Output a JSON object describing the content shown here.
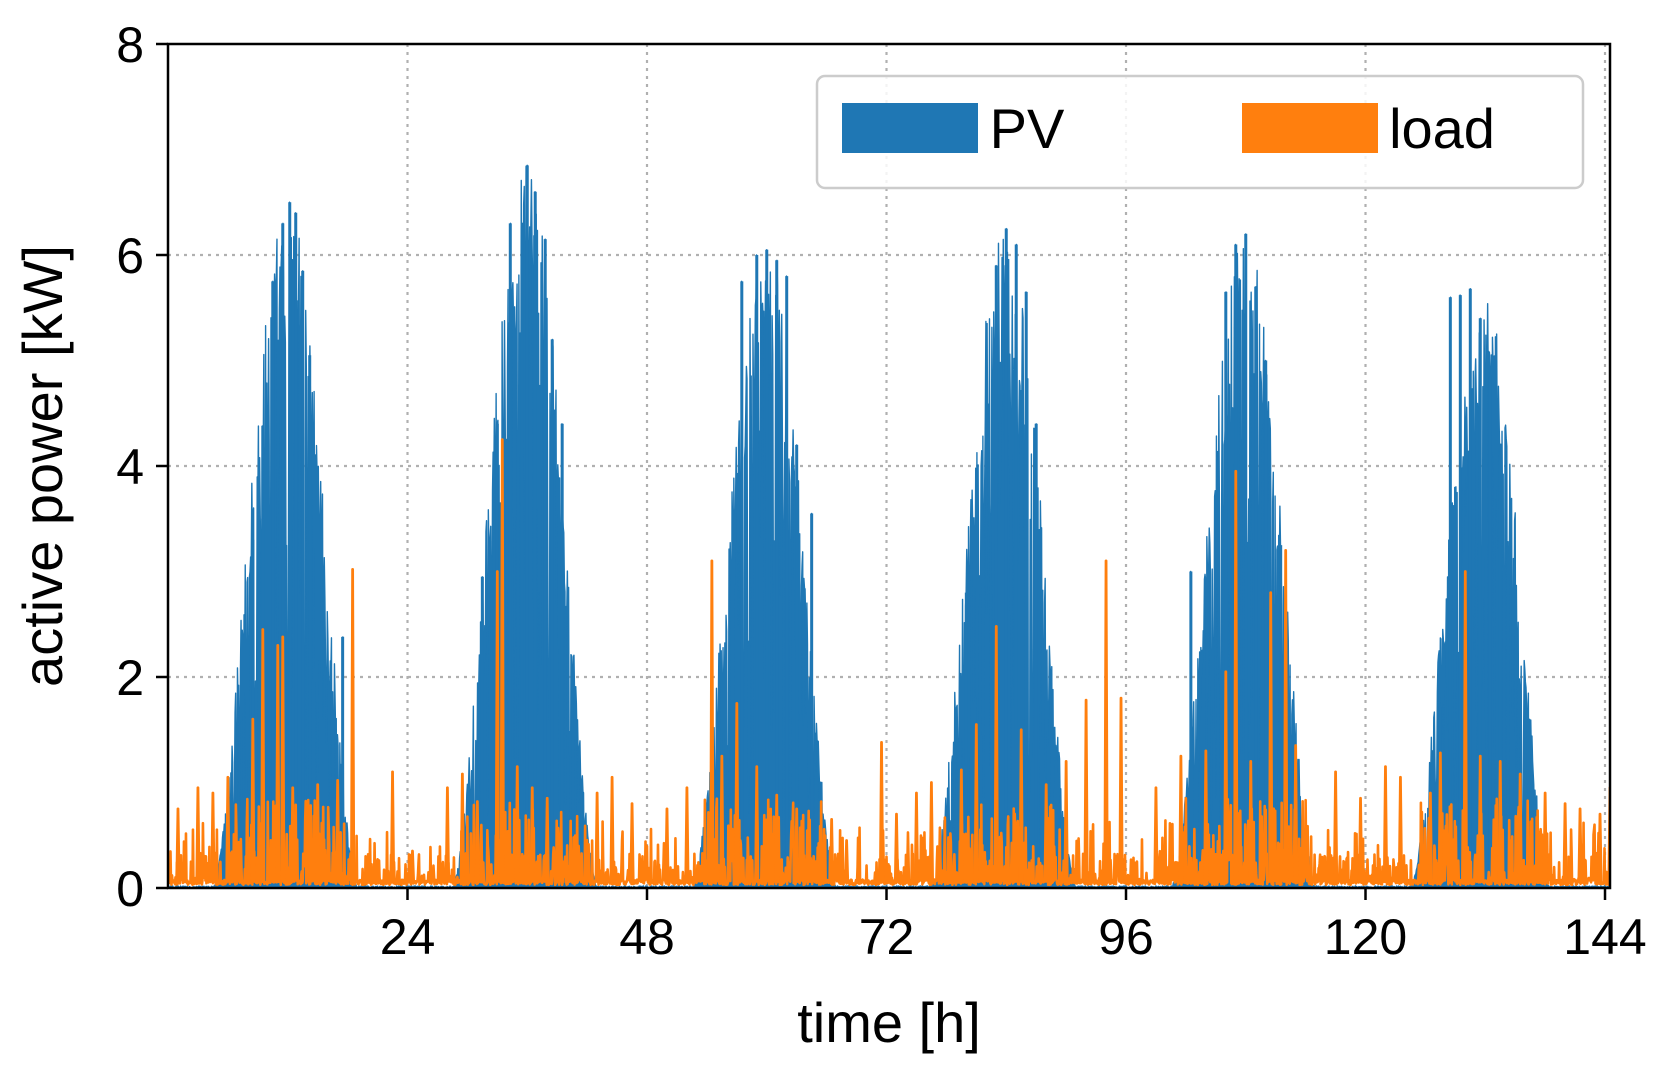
{
  "chart_data": {
    "type": "area",
    "title": "",
    "xlabel": "time [h]",
    "ylabel": "active power [kW]",
    "xlim": [
      0,
      144.5
    ],
    "ylim": [
      0,
      8
    ],
    "xticks": [
      24,
      48,
      72,
      96,
      120,
      144
    ],
    "yticks": [
      0,
      2,
      4,
      6,
      8
    ],
    "grid": true,
    "legend_position": "top-right",
    "colors": {
      "PV": "#1f77b4",
      "load": "#ff7f0e"
    },
    "series": [
      {
        "name": "PV",
        "kind": "fill",
        "days": [
          {
            "start": 4.5,
            "end": 19.0,
            "peak_time": 12.0,
            "peak_kW": 6.5
          },
          {
            "start": 28.5,
            "end": 43.0,
            "peak_time": 36.0,
            "peak_kW": 6.85
          },
          {
            "start": 52.5,
            "end": 67.0,
            "peak_time": 60.0,
            "peak_kW": 6.05
          },
          {
            "start": 76.5,
            "end": 91.0,
            "peak_time": 84.0,
            "peak_kW": 6.25
          },
          {
            "start": 100.5,
            "end": 115.0,
            "peak_time": 108.0,
            "peak_kW": 6.2
          },
          {
            "start": 124.5,
            "end": 138.5,
            "peak_time": 132.0,
            "peak_kW": 5.68
          }
        ],
        "spikes": [
          [
            8.5,
            3.3
          ],
          [
            9.5,
            3.5
          ],
          [
            10.0,
            4.15
          ],
          [
            10.5,
            5.75
          ],
          [
            11.5,
            6.3
          ],
          [
            12.2,
            6.5
          ],
          [
            12.8,
            6.4
          ],
          [
            13.5,
            5.85
          ],
          [
            14.2,
            5.05
          ],
          [
            17.5,
            2.38
          ],
          [
            31.5,
            2.95
          ],
          [
            33.0,
            4.4
          ],
          [
            34.3,
            6.3
          ],
          [
            35.5,
            6.3
          ],
          [
            36.0,
            6.85
          ],
          [
            36.8,
            6.6
          ],
          [
            37.8,
            6.15
          ],
          [
            38.5,
            5.2
          ],
          [
            39.5,
            4.4
          ],
          [
            57.5,
            5.75
          ],
          [
            59.0,
            6.0
          ],
          [
            60.0,
            6.05
          ],
          [
            61.0,
            5.95
          ],
          [
            62.0,
            5.8
          ],
          [
            63.0,
            4.2
          ],
          [
            64.5,
            3.55
          ],
          [
            80.0,
            2.8
          ],
          [
            83.0,
            5.9
          ],
          [
            84.0,
            6.25
          ],
          [
            85.0,
            6.1
          ],
          [
            86.0,
            5.65
          ],
          [
            87.0,
            4.4
          ],
          [
            102.5,
            3.0
          ],
          [
            106.0,
            5.65
          ],
          [
            107.0,
            6.1
          ],
          [
            108.0,
            6.2
          ],
          [
            109.0,
            5.7
          ],
          [
            110.0,
            5.0
          ],
          [
            111.5,
            3.25
          ],
          [
            127.5,
            1.72
          ],
          [
            128.5,
            5.6
          ],
          [
            129.5,
            5.62
          ],
          [
            130.5,
            5.68
          ],
          [
            131.5,
            5.4
          ],
          [
            132.5,
            4.85
          ],
          [
            133.5,
            4.1
          ]
        ]
      },
      {
        "name": "load",
        "kind": "line",
        "spikes": [
          [
            1.0,
            0.75
          ],
          [
            3.0,
            0.95
          ],
          [
            4.5,
            0.9
          ],
          [
            6.0,
            1.05
          ],
          [
            8.5,
            1.6
          ],
          [
            9.5,
            2.45
          ],
          [
            11.0,
            2.3
          ],
          [
            11.5,
            2.38
          ],
          [
            12.5,
            0.95
          ],
          [
            15.0,
            0.98
          ],
          [
            17.0,
            1.02
          ],
          [
            18.5,
            3.02
          ],
          [
            22.5,
            1.1
          ],
          [
            24.5,
            0.35
          ],
          [
            28.0,
            0.95
          ],
          [
            29.5,
            1.08
          ],
          [
            31.0,
            0.82
          ],
          [
            33.0,
            3.0
          ],
          [
            33.5,
            4.25
          ],
          [
            35.0,
            1.15
          ],
          [
            36.5,
            0.95
          ],
          [
            38.0,
            0.85
          ],
          [
            43.0,
            0.9
          ],
          [
            44.5,
            1.05
          ],
          [
            46.5,
            0.8
          ],
          [
            50.0,
            0.75
          ],
          [
            52.0,
            0.95
          ],
          [
            54.5,
            3.1
          ],
          [
            55.5,
            1.25
          ],
          [
            57.0,
            1.75
          ],
          [
            59.0,
            1.15
          ],
          [
            61.0,
            0.88
          ],
          [
            63.0,
            0.75
          ],
          [
            66.5,
            0.65
          ],
          [
            68.0,
            0.45
          ],
          [
            71.5,
            1.38
          ],
          [
            73.0,
            0.7
          ],
          [
            75.0,
            0.9
          ],
          [
            76.5,
            1.0
          ],
          [
            79.5,
            1.12
          ],
          [
            81.0,
            1.55
          ],
          [
            83.0,
            2.48
          ],
          [
            85.5,
            1.5
          ],
          [
            88.0,
            0.98
          ],
          [
            90.0,
            1.2
          ],
          [
            92.0,
            1.78
          ],
          [
            94.0,
            3.1
          ],
          [
            95.5,
            1.8
          ],
          [
            99.0,
            0.95
          ],
          [
            101.5,
            1.25
          ],
          [
            104.0,
            1.3
          ],
          [
            106.0,
            2.05
          ],
          [
            107.0,
            3.95
          ],
          [
            108.5,
            1.2
          ],
          [
            110.5,
            2.8
          ],
          [
            112.0,
            3.2
          ],
          [
            113.0,
            1.35
          ],
          [
            117.0,
            1.1
          ],
          [
            119.5,
            0.85
          ],
          [
            122.0,
            1.15
          ],
          [
            123.5,
            1.05
          ],
          [
            126.5,
            0.9
          ],
          [
            127.5,
            1.28
          ],
          [
            130.0,
            3.0
          ],
          [
            131.5,
            1.25
          ],
          [
            133.5,
            1.2
          ],
          [
            135.5,
            1.08
          ],
          [
            138.0,
            0.9
          ],
          [
            140.0,
            0.8
          ],
          [
            141.5,
            0.75
          ],
          [
            143.5,
            0.7
          ],
          [
            144.5,
            0.95
          ]
        ]
      }
    ]
  }
}
